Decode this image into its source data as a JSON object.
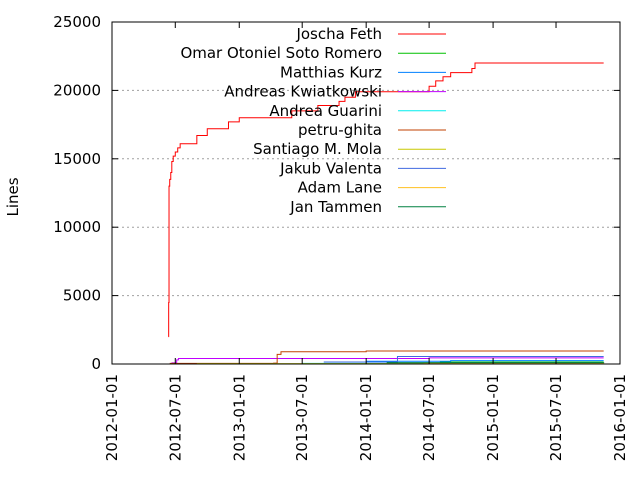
{
  "chart_data": {
    "type": "line",
    "title": "",
    "xlabel": "",
    "ylabel": "Lines",
    "xlim": [
      "2012-01-01",
      "2016-01-01"
    ],
    "ylim": [
      0,
      25000
    ],
    "x_ticks": [
      "2012-01-01",
      "2012-07-01",
      "2013-01-01",
      "2013-07-01",
      "2014-01-01",
      "2014-07-01",
      "2015-01-01",
      "2015-07-01",
      "2016-01-01"
    ],
    "y_ticks": [
      0,
      5000,
      10000,
      15000,
      20000,
      25000
    ],
    "y_grid": true,
    "legend_position": "top-right",
    "series": [
      {
        "name": "Joscha Feth",
        "color": "#ff0000",
        "step": true,
        "points": [
          [
            "2012-06-11",
            2000
          ],
          [
            "2012-06-12",
            4500
          ],
          [
            "2012-06-13",
            13000
          ],
          [
            "2012-06-15",
            13500
          ],
          [
            "2012-06-18",
            14000
          ],
          [
            "2012-06-21",
            14800
          ],
          [
            "2012-06-25",
            15200
          ],
          [
            "2012-07-01",
            15500
          ],
          [
            "2012-07-08",
            15800
          ],
          [
            "2012-07-15",
            16100
          ],
          [
            "2012-09-01",
            16700
          ],
          [
            "2012-10-01",
            17200
          ],
          [
            "2012-12-01",
            17700
          ],
          [
            "2013-01-01",
            18000
          ],
          [
            "2013-04-15",
            18000
          ],
          [
            "2013-06-01",
            18500
          ],
          [
            "2013-08-15",
            18900
          ],
          [
            "2013-10-15",
            19200
          ],
          [
            "2013-11-01",
            19500
          ],
          [
            "2013-12-01",
            19900
          ],
          [
            "2014-06-01",
            19900
          ],
          [
            "2014-07-01",
            20300
          ],
          [
            "2014-07-20",
            20700
          ],
          [
            "2014-08-10",
            21000
          ],
          [
            "2014-09-01",
            21300
          ],
          [
            "2014-10-15",
            21300
          ],
          [
            "2014-11-01",
            21600
          ],
          [
            "2014-11-10",
            22000
          ],
          [
            "2015-11-15",
            22000
          ]
        ]
      },
      {
        "name": "Omar Otoniel Soto Romero",
        "color": "#00c000",
        "step": true,
        "points": [
          [
            "2014-08-01",
            150
          ],
          [
            "2015-11-15",
            150
          ]
        ]
      },
      {
        "name": "Matthias Kurz",
        "color": "#0080ff",
        "step": true,
        "points": [
          [
            "2014-01-01",
            200
          ],
          [
            "2014-09-01",
            250
          ],
          [
            "2015-11-15",
            250
          ]
        ]
      },
      {
        "name": "Andreas Kwiatkowski",
        "color": "#c000ff",
        "step": true,
        "points": [
          [
            "2012-06-20",
            80
          ],
          [
            "2012-07-05",
            300
          ],
          [
            "2012-07-10",
            400
          ],
          [
            "2014-06-01",
            400
          ],
          [
            "2014-07-01",
            450
          ],
          [
            "2015-11-15",
            450
          ]
        ]
      },
      {
        "name": "Andrea Guarini",
        "color": "#00eeee",
        "step": true,
        "points": [
          [
            "2013-07-01",
            50
          ],
          [
            "2015-11-15",
            60
          ]
        ]
      },
      {
        "name": "petru-ghita",
        "color": "#c04000",
        "step": true,
        "points": [
          [
            "2012-06-15",
            50
          ],
          [
            "2013-04-10",
            60
          ],
          [
            "2013-04-20",
            700
          ],
          [
            "2013-05-01",
            900
          ],
          [
            "2014-01-01",
            950
          ],
          [
            "2015-11-15",
            950
          ]
        ]
      },
      {
        "name": "Santiago M. Mola",
        "color": "#c8c800",
        "step": true,
        "points": [
          [
            "2012-09-01",
            30
          ],
          [
            "2015-11-15",
            40
          ]
        ]
      },
      {
        "name": "Jakub Valenta",
        "color": "#4169e1",
        "step": true,
        "points": [
          [
            "2013-09-01",
            150
          ],
          [
            "2014-04-01",
            550
          ],
          [
            "2015-11-15",
            550
          ]
        ]
      },
      {
        "name": "Adam Lane",
        "color": "#ffc020",
        "step": true,
        "points": [
          [
            "2014-06-15",
            80
          ],
          [
            "2015-11-15",
            100
          ]
        ]
      },
      {
        "name": "Jan Tammen",
        "color": "#008040",
        "step": true,
        "points": [
          [
            "2014-03-01",
            100
          ],
          [
            "2015-11-15",
            120
          ]
        ]
      }
    ]
  }
}
